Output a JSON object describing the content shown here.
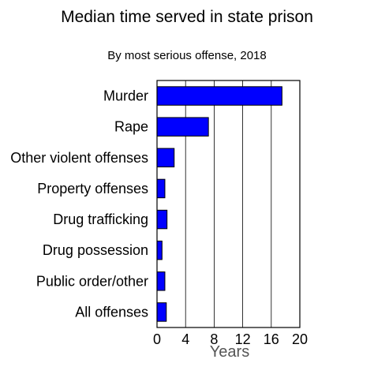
{
  "chart_data": {
    "type": "bar",
    "orientation": "horizontal",
    "title": "Median time served in state prison",
    "subtitle": "By most serious offense, 2018",
    "xlabel": "Years",
    "ylabel": "",
    "xlim": [
      0,
      20
    ],
    "xticks": [
      "0",
      "4",
      "8",
      "12",
      "16",
      "20"
    ],
    "grid": "vertical",
    "legend": "none",
    "bar_color": "#0000ff",
    "categories": [
      "Murder",
      "Rape",
      "Other violent offenses",
      "Property offenses",
      "Drug trafficking",
      "Drug possession",
      "Public order/other",
      "All offenses"
    ],
    "values": [
      17.5,
      7.2,
      2.4,
      1.1,
      1.4,
      0.7,
      1.1,
      1.3
    ]
  }
}
